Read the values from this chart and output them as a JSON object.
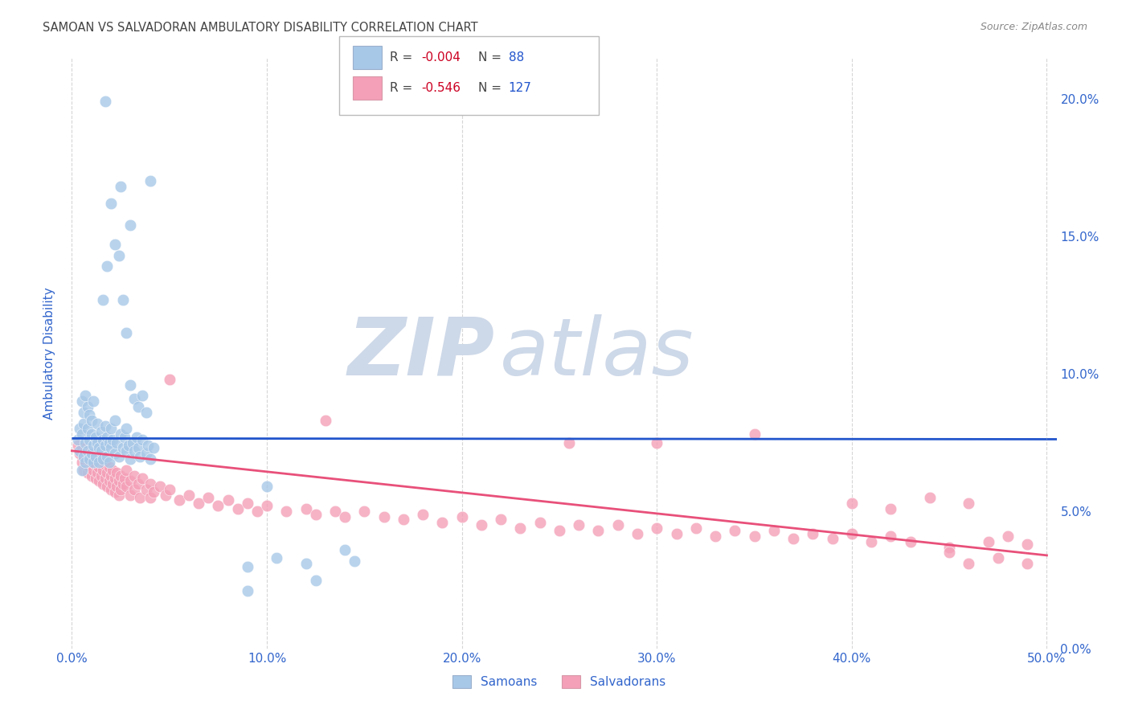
{
  "title": "SAMOAN VS SALVADORAN AMBULATORY DISABILITY CORRELATION CHART",
  "source": "Source: ZipAtlas.com",
  "ylabel": "Ambulatory Disability",
  "xlabel_ticks": [
    "0.0%",
    "10.0%",
    "20.0%",
    "30.0%",
    "40.0%",
    "50.0%"
  ],
  "xlabel_vals": [
    0.0,
    0.1,
    0.2,
    0.3,
    0.4,
    0.5
  ],
  "ylabel_ticks": [
    "0.0%",
    "5.0%",
    "10.0%",
    "15.0%",
    "20.0%"
  ],
  "ylabel_vals": [
    0.0,
    0.05,
    0.1,
    0.15,
    0.2
  ],
  "xlim": [
    -0.005,
    0.505
  ],
  "ylim": [
    0.0,
    0.215
  ],
  "samoan_color": "#a8c8e8",
  "salvadoran_color": "#f4a0b8",
  "samoan_line_color": "#2255cc",
  "salvadoran_line_color": "#e8507a",
  "legend_R_color": "#cc0022",
  "legend_N_color": "#2255cc",
  "watermark_zip": "ZIP",
  "watermark_atlas": "atlas",
  "watermark_color": "#cdd8e8",
  "background_color": "#ffffff",
  "title_color": "#444444",
  "source_color": "#888888",
  "axis_label_color": "#3366cc",
  "tick_color": "#3366cc",
  "grid_color": "#cccccc",
  "samoan_line_y0": 0.0765,
  "samoan_line_y1": 0.0762,
  "salvadoran_line_y0": 0.072,
  "salvadoran_line_y1": 0.034,
  "samoan_points": [
    [
      0.003,
      0.076
    ],
    [
      0.004,
      0.072
    ],
    [
      0.004,
      0.08
    ],
    [
      0.005,
      0.078
    ],
    [
      0.005,
      0.065
    ],
    [
      0.005,
      0.09
    ],
    [
      0.006,
      0.082
    ],
    [
      0.006,
      0.07
    ],
    [
      0.006,
      0.086
    ],
    [
      0.007,
      0.075
    ],
    [
      0.007,
      0.068
    ],
    [
      0.007,
      0.092
    ],
    [
      0.008,
      0.08
    ],
    [
      0.008,
      0.072
    ],
    [
      0.008,
      0.088
    ],
    [
      0.009,
      0.076
    ],
    [
      0.009,
      0.069
    ],
    [
      0.009,
      0.085
    ],
    [
      0.01,
      0.078
    ],
    [
      0.01,
      0.071
    ],
    [
      0.01,
      0.083
    ],
    [
      0.011,
      0.074
    ],
    [
      0.011,
      0.068
    ],
    [
      0.011,
      0.09
    ],
    [
      0.012,
      0.077
    ],
    [
      0.012,
      0.07
    ],
    [
      0.013,
      0.075
    ],
    [
      0.013,
      0.082
    ],
    [
      0.014,
      0.073
    ],
    [
      0.014,
      0.068
    ],
    [
      0.015,
      0.079
    ],
    [
      0.015,
      0.072
    ],
    [
      0.016,
      0.076
    ],
    [
      0.016,
      0.069
    ],
    [
      0.017,
      0.081
    ],
    [
      0.017,
      0.074
    ],
    [
      0.018,
      0.077
    ],
    [
      0.018,
      0.07
    ],
    [
      0.019,
      0.075
    ],
    [
      0.019,
      0.068
    ],
    [
      0.02,
      0.08
    ],
    [
      0.02,
      0.073
    ],
    [
      0.021,
      0.076
    ],
    [
      0.022,
      0.071
    ],
    [
      0.022,
      0.083
    ],
    [
      0.023,
      0.075
    ],
    [
      0.024,
      0.07
    ],
    [
      0.025,
      0.078
    ],
    [
      0.026,
      0.073
    ],
    [
      0.027,
      0.077
    ],
    [
      0.028,
      0.072
    ],
    [
      0.028,
      0.08
    ],
    [
      0.029,
      0.074
    ],
    [
      0.03,
      0.069
    ],
    [
      0.031,
      0.075
    ],
    [
      0.032,
      0.072
    ],
    [
      0.033,
      0.077
    ],
    [
      0.034,
      0.073
    ],
    [
      0.035,
      0.07
    ],
    [
      0.036,
      0.076
    ],
    [
      0.038,
      0.071
    ],
    [
      0.039,
      0.074
    ],
    [
      0.04,
      0.069
    ],
    [
      0.042,
      0.073
    ],
    [
      0.016,
      0.127
    ],
    [
      0.018,
      0.139
    ],
    [
      0.02,
      0.162
    ],
    [
      0.022,
      0.147
    ],
    [
      0.024,
      0.143
    ],
    [
      0.026,
      0.127
    ],
    [
      0.028,
      0.115
    ],
    [
      0.03,
      0.096
    ],
    [
      0.032,
      0.091
    ],
    [
      0.034,
      0.088
    ],
    [
      0.036,
      0.092
    ],
    [
      0.038,
      0.086
    ],
    [
      0.017,
      0.199
    ],
    [
      0.025,
      0.168
    ],
    [
      0.03,
      0.154
    ],
    [
      0.04,
      0.17
    ],
    [
      0.09,
      0.03
    ],
    [
      0.1,
      0.059
    ],
    [
      0.12,
      0.031
    ],
    [
      0.145,
      0.032
    ],
    [
      0.09,
      0.021
    ],
    [
      0.105,
      0.033
    ],
    [
      0.125,
      0.025
    ],
    [
      0.14,
      0.036
    ]
  ],
  "salvadoran_points": [
    [
      0.003,
      0.074
    ],
    [
      0.004,
      0.071
    ],
    [
      0.005,
      0.073
    ],
    [
      0.005,
      0.068
    ],
    [
      0.006,
      0.07
    ],
    [
      0.006,
      0.065
    ],
    [
      0.007,
      0.072
    ],
    [
      0.007,
      0.067
    ],
    [
      0.008,
      0.069
    ],
    [
      0.008,
      0.064
    ],
    [
      0.009,
      0.071
    ],
    [
      0.009,
      0.066
    ],
    [
      0.01,
      0.068
    ],
    [
      0.01,
      0.063
    ],
    [
      0.011,
      0.07
    ],
    [
      0.011,
      0.065
    ],
    [
      0.012,
      0.067
    ],
    [
      0.012,
      0.062
    ],
    [
      0.013,
      0.069
    ],
    [
      0.013,
      0.064
    ],
    [
      0.014,
      0.066
    ],
    [
      0.014,
      0.061
    ],
    [
      0.015,
      0.068
    ],
    [
      0.015,
      0.063
    ],
    [
      0.016,
      0.065
    ],
    [
      0.016,
      0.06
    ],
    [
      0.017,
      0.067
    ],
    [
      0.017,
      0.062
    ],
    [
      0.018,
      0.064
    ],
    [
      0.018,
      0.059
    ],
    [
      0.019,
      0.066
    ],
    [
      0.019,
      0.061
    ],
    [
      0.02,
      0.063
    ],
    [
      0.02,
      0.058
    ],
    [
      0.021,
      0.065
    ],
    [
      0.021,
      0.06
    ],
    [
      0.022,
      0.062
    ],
    [
      0.022,
      0.057
    ],
    [
      0.023,
      0.064
    ],
    [
      0.023,
      0.059
    ],
    [
      0.024,
      0.061
    ],
    [
      0.024,
      0.056
    ],
    [
      0.025,
      0.063
    ],
    [
      0.025,
      0.058
    ],
    [
      0.026,
      0.06
    ],
    [
      0.027,
      0.062
    ],
    [
      0.028,
      0.059
    ],
    [
      0.028,
      0.065
    ],
    [
      0.03,
      0.061
    ],
    [
      0.03,
      0.056
    ],
    [
      0.032,
      0.063
    ],
    [
      0.032,
      0.058
    ],
    [
      0.034,
      0.06
    ],
    [
      0.035,
      0.055
    ],
    [
      0.036,
      0.062
    ],
    [
      0.038,
      0.058
    ],
    [
      0.04,
      0.06
    ],
    [
      0.04,
      0.055
    ],
    [
      0.042,
      0.057
    ],
    [
      0.045,
      0.059
    ],
    [
      0.048,
      0.056
    ],
    [
      0.05,
      0.058
    ],
    [
      0.05,
      0.098
    ],
    [
      0.055,
      0.054
    ],
    [
      0.06,
      0.056
    ],
    [
      0.065,
      0.053
    ],
    [
      0.07,
      0.055
    ],
    [
      0.075,
      0.052
    ],
    [
      0.08,
      0.054
    ],
    [
      0.085,
      0.051
    ],
    [
      0.09,
      0.053
    ],
    [
      0.095,
      0.05
    ],
    [
      0.1,
      0.052
    ],
    [
      0.11,
      0.05
    ],
    [
      0.12,
      0.051
    ],
    [
      0.125,
      0.049
    ],
    [
      0.13,
      0.083
    ],
    [
      0.135,
      0.05
    ],
    [
      0.14,
      0.048
    ],
    [
      0.15,
      0.05
    ],
    [
      0.16,
      0.048
    ],
    [
      0.17,
      0.047
    ],
    [
      0.18,
      0.049
    ],
    [
      0.19,
      0.046
    ],
    [
      0.2,
      0.048
    ],
    [
      0.21,
      0.045
    ],
    [
      0.22,
      0.047
    ],
    [
      0.23,
      0.044
    ],
    [
      0.24,
      0.046
    ],
    [
      0.25,
      0.043
    ],
    [
      0.255,
      0.075
    ],
    [
      0.26,
      0.045
    ],
    [
      0.27,
      0.043
    ],
    [
      0.28,
      0.045
    ],
    [
      0.29,
      0.042
    ],
    [
      0.3,
      0.044
    ],
    [
      0.31,
      0.042
    ],
    [
      0.32,
      0.044
    ],
    [
      0.33,
      0.041
    ],
    [
      0.34,
      0.043
    ],
    [
      0.35,
      0.041
    ],
    [
      0.36,
      0.043
    ],
    [
      0.37,
      0.04
    ],
    [
      0.38,
      0.042
    ],
    [
      0.39,
      0.04
    ],
    [
      0.4,
      0.042
    ],
    [
      0.41,
      0.039
    ],
    [
      0.42,
      0.041
    ],
    [
      0.43,
      0.039
    ],
    [
      0.44,
      0.055
    ],
    [
      0.45,
      0.037
    ],
    [
      0.46,
      0.053
    ],
    [
      0.47,
      0.039
    ],
    [
      0.48,
      0.041
    ],
    [
      0.49,
      0.038
    ],
    [
      0.3,
      0.075
    ],
    [
      0.35,
      0.078
    ],
    [
      0.4,
      0.053
    ],
    [
      0.42,
      0.051
    ],
    [
      0.45,
      0.035
    ],
    [
      0.46,
      0.031
    ],
    [
      0.475,
      0.033
    ],
    [
      0.49,
      0.031
    ]
  ]
}
